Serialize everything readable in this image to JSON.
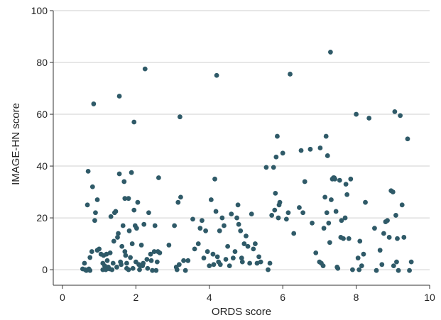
{
  "chart_data": {
    "type": "scatter",
    "title": "",
    "xlabel": "ORDS score",
    "ylabel": "IMAGE-HN score",
    "xlim": [
      -0.25,
      10
    ],
    "ylim": [
      -6,
      100
    ],
    "x_ticks": [
      "0",
      "2",
      "4",
      "6",
      "8",
      "10"
    ],
    "y_ticks": [
      "0",
      "20",
      "40",
      "60",
      "80",
      "100"
    ],
    "grid": "horizontal",
    "point_color": "#2f5a68",
    "points": [
      [
        0.55,
        0.3
      ],
      [
        0.6,
        2.5
      ],
      [
        0.62,
        0
      ],
      [
        0.65,
        -0.3
      ],
      [
        0.68,
        25
      ],
      [
        0.72,
        0.3
      ],
      [
        0.75,
        4.7
      ],
      [
        0.75,
        -0.3
      ],
      [
        0.7,
        38
      ],
      [
        0.8,
        7
      ],
      [
        0.82,
        32
      ],
      [
        0.85,
        64
      ],
      [
        0.88,
        19
      ],
      [
        0.9,
        22
      ],
      [
        0.95,
        7.5
      ],
      [
        0.95,
        27
      ],
      [
        1.0,
        8
      ],
      [
        1.05,
        6
      ],
      [
        1.1,
        0
      ],
      [
        1.1,
        2.5
      ],
      [
        1.12,
        5.5
      ],
      [
        1.15,
        1.5
      ],
      [
        1.18,
        0
      ],
      [
        1.2,
        6
      ],
      [
        1.22,
        3.5
      ],
      [
        1.25,
        1
      ],
      [
        1.28,
        0.3
      ],
      [
        1.3,
        6.5
      ],
      [
        1.32,
        20.5
      ],
      [
        1.35,
        0
      ],
      [
        1.38,
        2.5
      ],
      [
        1.4,
        11
      ],
      [
        1.42,
        22
      ],
      [
        1.45,
        22.5
      ],
      [
        1.48,
        1
      ],
      [
        1.5,
        12.5
      ],
      [
        1.52,
        14
      ],
      [
        1.55,
        67
      ],
      [
        1.55,
        37
      ],
      [
        1.58,
        3
      ],
      [
        1.6,
        2
      ],
      [
        1.62,
        9
      ],
      [
        1.65,
        17
      ],
      [
        1.68,
        34
      ],
      [
        1.7,
        27.5
      ],
      [
        1.7,
        7
      ],
      [
        1.72,
        5.5
      ],
      [
        1.75,
        2.5
      ],
      [
        1.75,
        0.5
      ],
      [
        1.8,
        27.5
      ],
      [
        1.8,
        0
      ],
      [
        1.82,
        15
      ],
      [
        1.85,
        4.7
      ],
      [
        1.88,
        37.5
      ],
      [
        1.9,
        10
      ],
      [
        1.92,
        0.5
      ],
      [
        1.95,
        57
      ],
      [
        1.95,
        23
      ],
      [
        1.98,
        17
      ],
      [
        2.0,
        3
      ],
      [
        2.02,
        16
      ],
      [
        2.05,
        26
      ],
      [
        2.08,
        2
      ],
      [
        2.1,
        0
      ],
      [
        2.12,
        1.5
      ],
      [
        2.15,
        9.5
      ],
      [
        2.18,
        1.5
      ],
      [
        2.2,
        2.5
      ],
      [
        2.22,
        17.5
      ],
      [
        2.25,
        77.5
      ],
      [
        2.3,
        4
      ],
      [
        2.32,
        0.5
      ],
      [
        2.35,
        22
      ],
      [
        2.4,
        6
      ],
      [
        2.42,
        3.5
      ],
      [
        2.45,
        -0.3
      ],
      [
        2.5,
        7
      ],
      [
        2.52,
        17
      ],
      [
        2.55,
        -0.3
      ],
      [
        2.58,
        3
      ],
      [
        2.6,
        7
      ],
      [
        2.62,
        35.5
      ],
      [
        2.65,
        6.5
      ],
      [
        2.9,
        9.5
      ],
      [
        3.05,
        17
      ],
      [
        3.1,
        1
      ],
      [
        3.12,
        0
      ],
      [
        3.15,
        26
      ],
      [
        3.18,
        2
      ],
      [
        3.2,
        59
      ],
      [
        3.22,
        28
      ],
      [
        3.3,
        3.5
      ],
      [
        3.35,
        -0.3
      ],
      [
        3.42,
        3.5
      ],
      [
        3.55,
        19.5
      ],
      [
        3.6,
        8
      ],
      [
        3.7,
        10
      ],
      [
        3.75,
        16
      ],
      [
        3.8,
        19
      ],
      [
        3.85,
        4.5
      ],
      [
        3.9,
        15
      ],
      [
        3.95,
        7
      ],
      [
        4.0,
        1.5
      ],
      [
        4.05,
        27
      ],
      [
        4.1,
        6
      ],
      [
        4.12,
        2
      ],
      [
        4.15,
        35
      ],
      [
        4.18,
        22.5
      ],
      [
        4.2,
        75
      ],
      [
        4.22,
        5
      ],
      [
        4.25,
        3
      ],
      [
        4.28,
        15
      ],
      [
        4.3,
        2
      ],
      [
        4.35,
        20
      ],
      [
        4.4,
        17
      ],
      [
        4.45,
        4
      ],
      [
        4.5,
        9
      ],
      [
        4.55,
        1.5
      ],
      [
        4.6,
        21.5
      ],
      [
        4.65,
        4.5
      ],
      [
        4.7,
        7
      ],
      [
        4.75,
        20
      ],
      [
        4.78,
        25
      ],
      [
        4.8,
        17.5
      ],
      [
        4.85,
        15
      ],
      [
        4.88,
        4.5
      ],
      [
        4.9,
        3
      ],
      [
        4.95,
        10
      ],
      [
        5.0,
        13
      ],
      [
        5.05,
        9
      ],
      [
        5.1,
        2.5
      ],
      [
        5.15,
        21.5
      ],
      [
        5.2,
        8
      ],
      [
        5.25,
        10
      ],
      [
        5.3,
        2.5
      ],
      [
        5.35,
        5
      ],
      [
        5.4,
        3
      ],
      [
        5.55,
        39.5
      ],
      [
        5.6,
        0
      ],
      [
        5.65,
        2.5
      ],
      [
        5.7,
        21
      ],
      [
        5.75,
        39.5
      ],
      [
        5.78,
        23
      ],
      [
        5.8,
        29.5
      ],
      [
        5.82,
        43.5
      ],
      [
        5.85,
        51.5
      ],
      [
        5.88,
        20
      ],
      [
        5.9,
        25
      ],
      [
        5.92,
        26
      ],
      [
        6.0,
        45
      ],
      [
        6.1,
        19.5
      ],
      [
        6.15,
        22
      ],
      [
        6.2,
        75.5
      ],
      [
        6.3,
        14
      ],
      [
        6.45,
        24
      ],
      [
        6.5,
        46
      ],
      [
        6.55,
        22
      ],
      [
        6.6,
        34
      ],
      [
        6.75,
        46.5
      ],
      [
        6.8,
        18
      ],
      [
        6.9,
        6.5
      ],
      [
        7.0,
        3
      ],
      [
        7.02,
        47
      ],
      [
        7.05,
        2.5
      ],
      [
        7.1,
        1.5
      ],
      [
        7.12,
        16
      ],
      [
        7.15,
        28
      ],
      [
        7.18,
        51.5
      ],
      [
        7.2,
        22
      ],
      [
        7.22,
        44
      ],
      [
        7.25,
        18
      ],
      [
        7.28,
        10.5
      ],
      [
        7.3,
        84
      ],
      [
        7.32,
        27
      ],
      [
        7.35,
        35
      ],
      [
        7.38,
        35.5
      ],
      [
        7.4,
        35.5
      ],
      [
        7.42,
        35
      ],
      [
        7.45,
        22.5
      ],
      [
        7.48,
        1
      ],
      [
        7.5,
        0.5
      ],
      [
        7.55,
        34.5
      ],
      [
        7.58,
        12.5
      ],
      [
        7.6,
        19
      ],
      [
        7.65,
        12
      ],
      [
        7.7,
        20
      ],
      [
        7.72,
        33
      ],
      [
        7.75,
        29
      ],
      [
        7.8,
        12
      ],
      [
        7.85,
        35
      ],
      [
        7.9,
        0
      ],
      [
        8.0,
        60
      ],
      [
        8.05,
        4.5
      ],
      [
        8.08,
        0
      ],
      [
        8.1,
        11
      ],
      [
        8.15,
        1.5
      ],
      [
        8.2,
        6
      ],
      [
        8.25,
        26
      ],
      [
        8.35,
        58.5
      ],
      [
        8.5,
        16
      ],
      [
        8.55,
        -0.3
      ],
      [
        8.65,
        7.5
      ],
      [
        8.7,
        2
      ],
      [
        8.75,
        14
      ],
      [
        8.8,
        18.5
      ],
      [
        8.85,
        19
      ],
      [
        8.9,
        12.5
      ],
      [
        8.95,
        30.5
      ],
      [
        9.0,
        30
      ],
      [
        9.02,
        1.5
      ],
      [
        9.05,
        61
      ],
      [
        9.08,
        21
      ],
      [
        9.1,
        3
      ],
      [
        9.12,
        12
      ],
      [
        9.15,
        -0.3
      ],
      [
        9.2,
        59.5
      ],
      [
        9.25,
        25
      ],
      [
        9.3,
        12.5
      ],
      [
        9.4,
        50.5
      ],
      [
        9.45,
        -0.3
      ],
      [
        9.5,
        3
      ]
    ]
  }
}
